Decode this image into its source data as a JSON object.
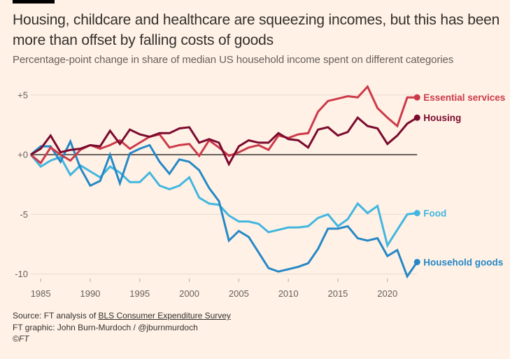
{
  "header": {
    "title": "Housing, childcare and healthcare are squeezing incomes, but this has been more than offset by falling costs of goods",
    "subtitle": "Percentage-point change in share of median US household income spent on different categories"
  },
  "footer": {
    "source_prefix": "Source: FT analysis of ",
    "source_link": "BLS Consumer Expenditure Survey",
    "credit": "FT graphic: John Burn-Murdoch / @jburnmurdoch",
    "copyright": "©FT"
  },
  "chart_data": {
    "type": "line",
    "title": "Housing, childcare and healthcare are squeezing incomes, but this has been more than offset by falling costs of goods",
    "subtitle": "Percentage-point change in share of median US household income spent on different categories",
    "xlabel": "",
    "ylabel": "",
    "xlim": [
      1984,
      2023
    ],
    "ylim": [
      -10.5,
      6
    ],
    "x_ticks": [
      1985,
      1990,
      1995,
      2000,
      2005,
      2010,
      2015,
      2020
    ],
    "x_tick_labels": [
      "1985",
      "1990",
      "1995",
      "2000",
      "2005",
      "2010",
      "2015",
      "2020"
    ],
    "y_ticks": [
      5,
      0,
      -5,
      -10
    ],
    "y_tick_labels": [
      "+5",
      "+0",
      "-5",
      "-10"
    ],
    "grid": true,
    "zero_line": true,
    "legend": "direct-labels-right",
    "x": [
      1984,
      1985,
      1986,
      1987,
      1988,
      1989,
      1990,
      1991,
      1992,
      1993,
      1994,
      1995,
      1996,
      1997,
      1998,
      1999,
      2000,
      2001,
      2002,
      2003,
      2004,
      2005,
      2006,
      2007,
      2008,
      2009,
      2010,
      2011,
      2012,
      2013,
      2014,
      2015,
      2016,
      2017,
      2018,
      2019,
      2020,
      2021,
      2022,
      2023
    ],
    "series": [
      {
        "name": "Housing",
        "color": "#7a0a2e",
        "values": [
          0,
          0.5,
          1.6,
          0.2,
          0.4,
          0.5,
          0.8,
          0.7,
          2.0,
          0.9,
          2.1,
          1.7,
          1.5,
          1.8,
          1.8,
          2.2,
          2.3,
          1.0,
          1.3,
          1.0,
          -0.8,
          0.7,
          1.2,
          1.0,
          1.0,
          1.8,
          1.3,
          1.2,
          0.6,
          2.1,
          2.3,
          1.6,
          1.9,
          3.1,
          2.4,
          2.2,
          0.9,
          1.6,
          2.6,
          3.1
        ]
      },
      {
        "name": "Essential services",
        "color": "#cc3a4a",
        "values": [
          0,
          -0.7,
          0.6,
          0,
          -0.5,
          0.4,
          0.8,
          0.5,
          0.8,
          1.2,
          0.5,
          1.0,
          1.5,
          1.7,
          0.6,
          0.8,
          0.9,
          -0.1,
          1.2,
          0.6,
          -0.1,
          0.2,
          0.6,
          0.8,
          0.4,
          1.6,
          1.4,
          1.7,
          1.8,
          3.6,
          4.5,
          4.7,
          4.9,
          4.8,
          5.7,
          3.9,
          3.1,
          2.4,
          4.8,
          4.8
        ]
      },
      {
        "name": "Food",
        "color": "#42b6e0",
        "values": [
          0,
          -1.0,
          -0.5,
          -0.2,
          -1.7,
          -0.9,
          -1.4,
          -1.9,
          -1.0,
          -1.5,
          -2.3,
          -2.3,
          -1.5,
          -2.6,
          -2.9,
          -2.6,
          -1.9,
          -3.6,
          -4.1,
          -4.2,
          -5.1,
          -5.6,
          -5.6,
          -5.8,
          -6.5,
          -6.3,
          -6.1,
          -6.1,
          -6.0,
          -5.3,
          -5.0,
          -6.0,
          -5.4,
          -4.1,
          -4.9,
          -4.3,
          -7.6,
          -6.3,
          -5.0,
          -4.9
        ]
      },
      {
        "name": "Household goods",
        "color": "#2588c6",
        "values": [
          0,
          0.7,
          0.7,
          -0.6,
          1.1,
          -1.1,
          -2.6,
          -2.2,
          0,
          -2.4,
          0.1,
          0.5,
          0.8,
          -0.6,
          -1.6,
          -0.4,
          -0.6,
          -1.3,
          -2.8,
          -3.9,
          -7.2,
          -6.4,
          -6.9,
          -8.2,
          -9.5,
          -9.8,
          -9.6,
          -9.4,
          -9.1,
          -7.9,
          -6.2,
          -6.2,
          -6.0,
          -7.0,
          -7.2,
          -7.0,
          -8.5,
          -8.0,
          -10.2,
          -9.0
        ]
      }
    ]
  },
  "colors": {
    "background": "#fff1e5",
    "grid": "#e6d9ce",
    "zero_line": "#66605c",
    "text": "#33302e",
    "muted_text": "#66605c"
  }
}
